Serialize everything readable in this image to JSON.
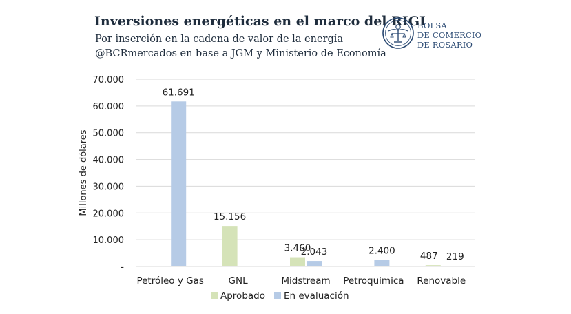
{
  "header": {
    "title": "Inversiones energéticas en el marco del RIGI",
    "subtitle": "Por inserción en la cadena de valor de la energía",
    "source": "@BCRmercados en base a JGM y Ministerio de Economía"
  },
  "logo": {
    "line1": "BOLSA",
    "line2": "DE COMERCIO",
    "line3": "DE ROSARIO",
    "icon": "bcr-emblem-icon",
    "color": "#2b4a73"
  },
  "chart_data": {
    "type": "bar",
    "categories": [
      "Petróleo y Gas",
      "GNL",
      "Midstream",
      "Petroquimica",
      "Renovable"
    ],
    "series": [
      {
        "name": "Aprobado",
        "color": "#d5e3b8",
        "values": [
          null,
          15156,
          3460,
          null,
          487
        ],
        "labels": [
          "",
          "15.156",
          "3.460",
          "",
          "487"
        ]
      },
      {
        "name": "En evaluación",
        "color": "#b6cbe6",
        "values": [
          61691,
          null,
          2043,
          2400,
          219
        ],
        "labels": [
          "61.691",
          "",
          "2.043",
          "2.400",
          "219"
        ]
      }
    ],
    "ylabel": "Millones de dólares",
    "ylim": [
      0,
      70000
    ],
    "yticks": [
      0,
      10000,
      20000,
      30000,
      40000,
      50000,
      60000,
      70000
    ],
    "ytick_labels": [
      "-",
      "10.000",
      "20.000",
      "30.000",
      "40.000",
      "50.000",
      "60.000",
      "70.000"
    ],
    "grid": true,
    "legend": "bottom"
  }
}
